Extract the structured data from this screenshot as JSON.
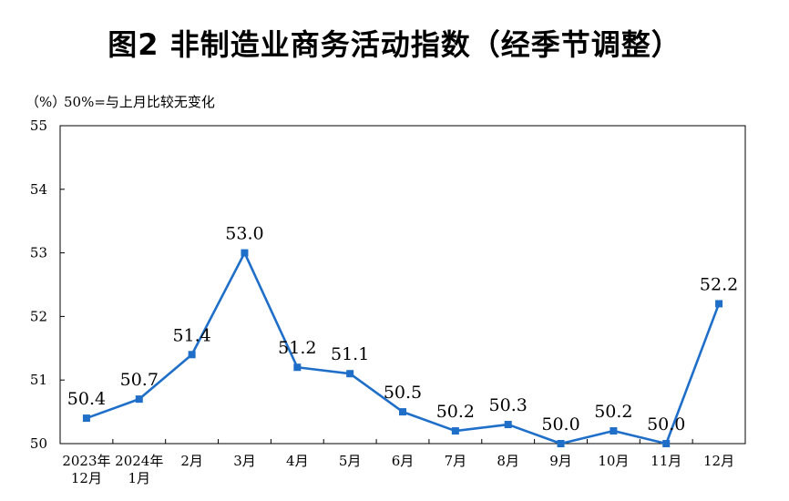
{
  "chart_data": {
    "type": "line",
    "title": "图2 非制造业商务活动指数（经季节调整）",
    "ylabel": "（%）",
    "note": "50%=与上月比较无变化",
    "ylim": [
      50,
      55
    ],
    "yticks": [
      "50",
      "51",
      "52",
      "53",
      "54",
      "55"
    ],
    "categories": [
      [
        "2023年",
        "12月"
      ],
      [
        "2024年",
        "1月"
      ],
      [
        "2月"
      ],
      [
        "3月"
      ],
      [
        "4月"
      ],
      [
        "5月"
      ],
      [
        "6月"
      ],
      [
        "7月"
      ],
      [
        "8月"
      ],
      [
        "9月"
      ],
      [
        "10月"
      ],
      [
        "11月"
      ],
      [
        "12月"
      ]
    ],
    "values": [
      50.4,
      50.7,
      51.4,
      53.0,
      51.2,
      51.1,
      50.5,
      50.2,
      50.3,
      50.0,
      50.2,
      50.0,
      52.2
    ],
    "value_labels": [
      "50.4",
      "50.7",
      "51.4",
      "53.0",
      "51.2",
      "51.1",
      "50.5",
      "50.2",
      "50.3",
      "50.0",
      "50.2",
      "50.0",
      "52.2"
    ],
    "line_color": "#1f6fc9",
    "grid": false
  }
}
